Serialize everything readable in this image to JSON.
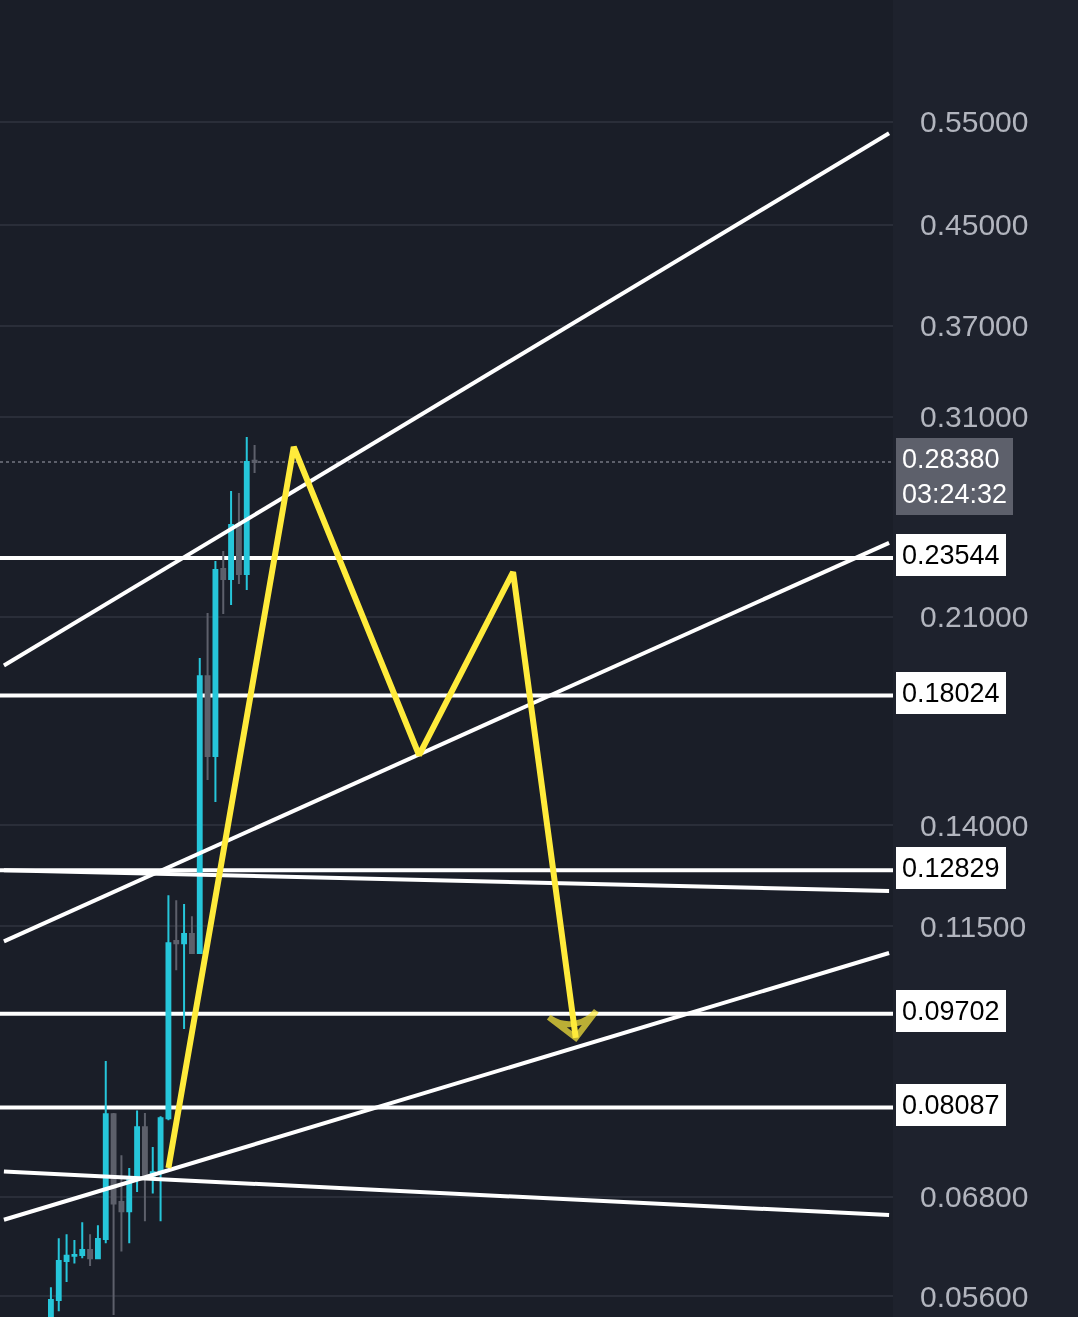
{
  "chart_data": {
    "type": "candlestick",
    "log": "y",
    "grid": "y",
    "tick_labels": "y",
    "marker": "none",
    "categories": [
      null,
      null,
      null,
      null,
      null,
      null,
      null,
      null,
      null,
      null,
      null,
      null,
      null,
      null,
      null,
      null,
      null,
      null,
      null,
      null,
      null,
      null,
      null,
      null,
      null,
      null,
      null,
      null,
      null,
      null,
      null,
      null,
      null,
      null,
      null,
      null,
      null,
      null,
      null,
      null,
      null,
      null,
      null,
      null,
      null,
      null,
      null,
      null,
      null,
      null,
      null,
      null,
      null,
      null,
      null,
      null,
      null,
      null,
      null,
      null,
      null,
      null,
      null,
      null,
      null,
      null,
      null,
      null,
      null,
      null,
      null,
      null,
      null,
      null,
      null,
      null,
      null,
      null,
      null,
      null,
      null,
      null,
      null,
      null,
      null,
      null,
      null,
      null,
      null,
      null,
      null,
      null,
      null,
      null,
      null,
      null,
      null,
      null,
      null,
      null,
      null,
      null,
      null,
      null,
      null,
      null,
      null,
      null,
      null,
      null,
      null,
      null,
      null,
      null
    ],
    "ohlc": [
      null,
      null,
      null,
      null,
      null,
      null,
      [
        0.0539,
        0.057,
        0.0539,
        0.0556
      ],
      [
        0.0556,
        0.0627,
        0.0544,
        0.06
      ],
      [
        0.06,
        0.0632,
        0.0576,
        0.0606
      ],
      [
        0.0606,
        0.0625,
        0.0597,
        0.0607
      ],
      [
        0.0607,
        0.0647,
        0.0603,
        0.0613
      ],
      [
        0.0613,
        0.0632,
        0.0594,
        0.0603
      ],
      [
        0.0603,
        0.0643,
        0.0603,
        0.0626
      ],
      [
        0.0626,
        0.0885,
        0.0621,
        0.0798
      ],
      [
        0.0798,
        0.08,
        0.054,
        0.0671
      ],
      [
        0.0673,
        0.0737,
        0.0611,
        0.0661
      ],
      [
        0.0661,
        0.0719,
        0.0621,
        0.0705
      ],
      [
        0.0705,
        0.0804,
        0.0686,
        0.0778
      ],
      [
        0.0778,
        0.08,
        0.0648,
        0.0708
      ],
      [
        0.0708,
        0.0749,
        0.0684,
        0.0713
      ],
      [
        0.0713,
        0.0795,
        0.0648,
        0.0792
      ],
      [
        0.0792,
        0.1222,
        0.0789,
        0.1113
      ],
      [
        0.1118,
        0.121,
        0.1056,
        0.1113
      ],
      [
        0.1113,
        0.1201,
        0.0942,
        0.1133
      ],
      [
        0.1133,
        0.1173,
        0.1092,
        0.1092
      ],
      [
        0.1092,
        0.1938,
        0.1092,
        0.1871
      ],
      [
        0.1871,
        0.2116,
        0.1529,
        0.1602
      ],
      [
        0.1602,
        0.2341,
        0.1465,
        0.23
      ],
      [
        0.2305,
        0.2387,
        0.2112,
        0.226
      ],
      [
        0.226,
        0.2682,
        0.2149,
        0.2511
      ],
      [
        0.2511,
        0.2672,
        0.2238,
        0.2282
      ],
      [
        0.2282,
        0.2979,
        0.2212,
        0.2838
      ],
      [
        0.2845,
        0.2933,
        0.2778,
        0.2838
      ],
      null,
      null,
      null,
      null,
      null,
      null,
      null,
      null,
      null,
      null,
      null,
      null,
      null,
      null,
      null,
      null,
      null,
      null,
      null,
      null,
      null,
      null,
      null,
      null,
      null,
      null,
      null,
      null,
      null,
      null,
      null,
      null,
      null,
      null,
      null,
      null,
      null,
      null,
      null,
      null,
      null,
      null,
      null,
      null,
      null,
      null,
      null,
      null,
      null,
      null,
      null,
      null,
      null,
      null,
      null,
      null,
      null,
      null,
      null,
      null,
      null,
      null,
      null,
      null,
      null,
      null,
      null,
      null,
      null,
      null,
      null,
      null,
      null,
      null,
      null,
      null,
      null,
      null,
      null,
      null,
      null
    ],
    "colors": [
      null,
      null,
      null,
      null,
      null,
      null,
      "#26c6da",
      "#26c6da",
      "#26c6da",
      "#26c6da",
      "#26c6da",
      "#5d606b",
      "#26c6da",
      "#26c6da",
      "#5d606b",
      "#5d606b",
      "#26c6da",
      "#26c6da",
      "#5d606b",
      "#26c6da",
      "#26c6da",
      "#26c6da",
      "#5d606b",
      "#26c6da",
      "#5d606b",
      "#26c6da",
      "#5d606b",
      "#26c6da",
      "#5d606b",
      "#26c6da",
      "#5d606b",
      "#26c6da",
      "#5d606b",
      null,
      null,
      null,
      null,
      null,
      null,
      null,
      null,
      null,
      null,
      null,
      null,
      null,
      null,
      null,
      null,
      null,
      null,
      null,
      null,
      null,
      null,
      null,
      null,
      null,
      null,
      null,
      null,
      null,
      null,
      null,
      null,
      null,
      null,
      null,
      null,
      null,
      null,
      null,
      null,
      null,
      null,
      null,
      null,
      null,
      null,
      null,
      null,
      null,
      null,
      null,
      null,
      null,
      null,
      null,
      null,
      null,
      null,
      null,
      null,
      null,
      null,
      null,
      null,
      null,
      null,
      null,
      null,
      null,
      null,
      null,
      null,
      null,
      null,
      null,
      null,
      null,
      null,
      null,
      null,
      null
    ],
    "series": [
      {
        "type": "line",
        "color": "#ffffff",
        "line_style": "solid",
        "values": [
          0.191,
          null,
          null,
          null,
          null,
          null,
          null,
          null,
          null,
          null,
          null,
          null,
          null,
          null,
          null,
          null,
          null,
          null,
          null,
          null,
          null,
          null,
          null,
          null,
          null,
          null,
          null,
          null,
          null,
          null,
          null,
          null,
          null,
          null,
          null,
          null,
          null,
          null,
          null,
          null,
          null,
          null,
          null,
          null,
          null,
          null,
          null,
          null,
          null,
          null,
          null,
          null,
          null,
          null,
          null,
          null,
          null,
          null,
          null,
          null,
          null,
          null,
          null,
          null,
          null,
          null,
          null,
          null,
          null,
          null,
          null,
          null,
          null,
          null,
          null,
          null,
          null,
          null,
          null,
          null,
          null,
          null,
          null,
          null,
          null,
          null,
          null,
          null,
          null,
          null,
          null,
          null,
          null,
          null,
          null,
          null,
          null,
          null,
          null,
          null,
          null,
          null,
          null,
          null,
          null,
          null,
          null,
          null,
          null,
          null,
          null,
          null,
          null,
          0.5379
        ]
      },
      {
        "type": "line",
        "color": "#ffffff",
        "line_style": "solid",
        "values": [
          0.1117,
          null,
          null,
          null,
          null,
          null,
          null,
          null,
          null,
          null,
          null,
          null,
          null,
          null,
          null,
          null,
          null,
          null,
          null,
          null,
          null,
          null,
          null,
          null,
          null,
          null,
          null,
          null,
          null,
          null,
          null,
          null,
          null,
          null,
          null,
          null,
          null,
          null,
          null,
          null,
          null,
          null,
          null,
          null,
          null,
          null,
          null,
          null,
          null,
          null,
          null,
          null,
          null,
          null,
          null,
          null,
          null,
          null,
          null,
          null,
          null,
          null,
          null,
          null,
          null,
          null,
          null,
          null,
          null,
          null,
          null,
          null,
          null,
          null,
          null,
          null,
          null,
          null,
          null,
          null,
          null,
          null,
          null,
          null,
          null,
          null,
          null,
          null,
          null,
          null,
          null,
          null,
          null,
          null,
          null,
          null,
          null,
          null,
          null,
          null,
          null,
          null,
          null,
          null,
          null,
          null,
          null,
          null,
          null,
          null,
          null,
          null,
          null,
          0.2425
        ]
      },
      {
        "type": "line",
        "color": "#ffffff",
        "line_style": "solid",
        "values": [
          0.065,
          null,
          null,
          null,
          null,
          null,
          null,
          null,
          null,
          null,
          null,
          null,
          null,
          null,
          null,
          null,
          null,
          null,
          null,
          null,
          null,
          null,
          null,
          null,
          null,
          null,
          null,
          null,
          null,
          null,
          null,
          null,
          null,
          null,
          null,
          null,
          null,
          null,
          null,
          null,
          null,
          null,
          null,
          null,
          null,
          null,
          null,
          null,
          null,
          null,
          null,
          null,
          null,
          null,
          null,
          null,
          null,
          null,
          null,
          null,
          null,
          null,
          null,
          null,
          null,
          null,
          null,
          null,
          null,
          null,
          null,
          null,
          null,
          null,
          null,
          null,
          null,
          null,
          null,
          null,
          null,
          null,
          null,
          null,
          null,
          null,
          null,
          null,
          null,
          null,
          null,
          null,
          null,
          null,
          null,
          null,
          null,
          null,
          null,
          null,
          null,
          null,
          null,
          null,
          null,
          null,
          null,
          null,
          null,
          null,
          null,
          null,
          null,
          0.1092
        ]
      },
      {
        "type": "line",
        "color": "#ffffff",
        "line_style": "solid",
        "values": [
          0.1283,
          null,
          null,
          null,
          null,
          null,
          null,
          null,
          null,
          null,
          null,
          null,
          null,
          null,
          null,
          null,
          null,
          null,
          null,
          null,
          null,
          null,
          null,
          null,
          null,
          null,
          null,
          null,
          null,
          null,
          null,
          null,
          null,
          null,
          null,
          null,
          null,
          null,
          null,
          null,
          null,
          null,
          null,
          null,
          null,
          null,
          null,
          null,
          null,
          null,
          null,
          null,
          null,
          null,
          null,
          null,
          null,
          null,
          null,
          null,
          null,
          null,
          null,
          null,
          null,
          null,
          null,
          null,
          null,
          null,
          null,
          null,
          null,
          null,
          null,
          null,
          null,
          null,
          null,
          null,
          null,
          null,
          null,
          null,
          null,
          null,
          null,
          null,
          null,
          null,
          null,
          null,
          null,
          null,
          null,
          null,
          null,
          null,
          null,
          null,
          null,
          null,
          null,
          null,
          null,
          null,
          null,
          null,
          null,
          null,
          null,
          null,
          null,
          0.1232
        ]
      },
      {
        "type": "line",
        "color": "#ffffff",
        "line_style": "solid",
        "values": [
          0.0714,
          null,
          null,
          null,
          null,
          null,
          null,
          null,
          null,
          null,
          null,
          null,
          null,
          null,
          null,
          null,
          null,
          null,
          null,
          null,
          null,
          null,
          null,
          null,
          null,
          null,
          null,
          null,
          null,
          null,
          null,
          null,
          null,
          null,
          null,
          null,
          null,
          null,
          null,
          null,
          null,
          null,
          null,
          null,
          null,
          null,
          null,
          null,
          null,
          null,
          null,
          null,
          null,
          null,
          null,
          null,
          null,
          null,
          null,
          null,
          null,
          null,
          null,
          null,
          null,
          null,
          null,
          null,
          null,
          null,
          null,
          null,
          null,
          null,
          null,
          null,
          null,
          null,
          null,
          null,
          null,
          null,
          null,
          null,
          null,
          null,
          null,
          null,
          null,
          null,
          null,
          null,
          null,
          null,
          null,
          null,
          null,
          null,
          null,
          null,
          null,
          null,
          null,
          null,
          null,
          null,
          null,
          null,
          null,
          null,
          null,
          null,
          null,
          0.0656
        ]
      },
      {
        "type": "line",
        "color": "#ffeb3b",
        "line_style": "solid",
        "values": [
          null,
          null,
          null,
          null,
          null,
          null,
          null,
          null,
          null,
          null,
          null,
          null,
          null,
          null,
          null,
          null,
          null,
          null,
          null,
          null,
          null,
          0.0719,
          null,
          null,
          null,
          null,
          null,
          null,
          null,
          null,
          null,
          null,
          null,
          null,
          null,
          null,
          null,
          0.2922,
          null,
          null,
          null,
          null,
          null,
          null,
          null,
          null,
          null,
          null,
          null,
          null,
          null,
          null,
          null,
          0.1605,
          null,
          null,
          null,
          null,
          null,
          null,
          null,
          null,
          null,
          null,
          null,
          0.2291,
          null,
          null,
          null,
          null,
          null,
          null,
          null,
          0.0926,
          null,
          null,
          null,
          null,
          null,
          null,
          null,
          null,
          null,
          null,
          null,
          null,
          null,
          null,
          null,
          null,
          null,
          null,
          null,
          null,
          null,
          null,
          null,
          null,
          null,
          null,
          null,
          null,
          null,
          null,
          null,
          null,
          null,
          null,
          null,
          null,
          null,
          null,
          null,
          null
        ]
      }
    ],
    "ref_lines": [
      {
        "axis": "y",
        "value": 0.2838,
        "label": "0.28380\n03:24:32",
        "color": "#5d606b",
        "line_style": "dotted"
      },
      {
        "axis": "y",
        "value": 0.23544,
        "label": "0.23544",
        "color": "#ffffff",
        "line_style": "solid"
      },
      {
        "axis": "y",
        "value": 0.18024,
        "label": "0.18024",
        "color": "#ffffff",
        "line_style": "solid"
      },
      {
        "axis": "y",
        "value": 0.12829,
        "label": "0.12829",
        "color": "#ffffff",
        "line_style": "solid"
      },
      {
        "axis": "y",
        "value": 0.09702,
        "label": "0.09702",
        "color": "#ffffff",
        "line_style": "solid"
      },
      {
        "axis": "y",
        "value": 0.08087,
        "label": "0.08087",
        "color": "#ffffff",
        "line_style": "solid"
      }
    ],
    "ylim": [
      0.0538,
      0.697
    ],
    "yticks": [
      {
        "value": 0.55,
        "label": "0.55000"
      },
      {
        "value": 0.45,
        "label": "0.45000"
      },
      {
        "value": 0.37,
        "label": "0.37000"
      },
      {
        "value": 0.31,
        "label": "0.31000"
      },
      {
        "value": 0.21,
        "label": "0.21000"
      },
      {
        "value": 0.14,
        "label": "0.14000"
      },
      {
        "value": 0.115,
        "label": "0.11500"
      },
      {
        "value": 0.068,
        "label": "0.06800"
      },
      {
        "value": 0.056,
        "label": "0.05600"
      }
    ]
  }
}
